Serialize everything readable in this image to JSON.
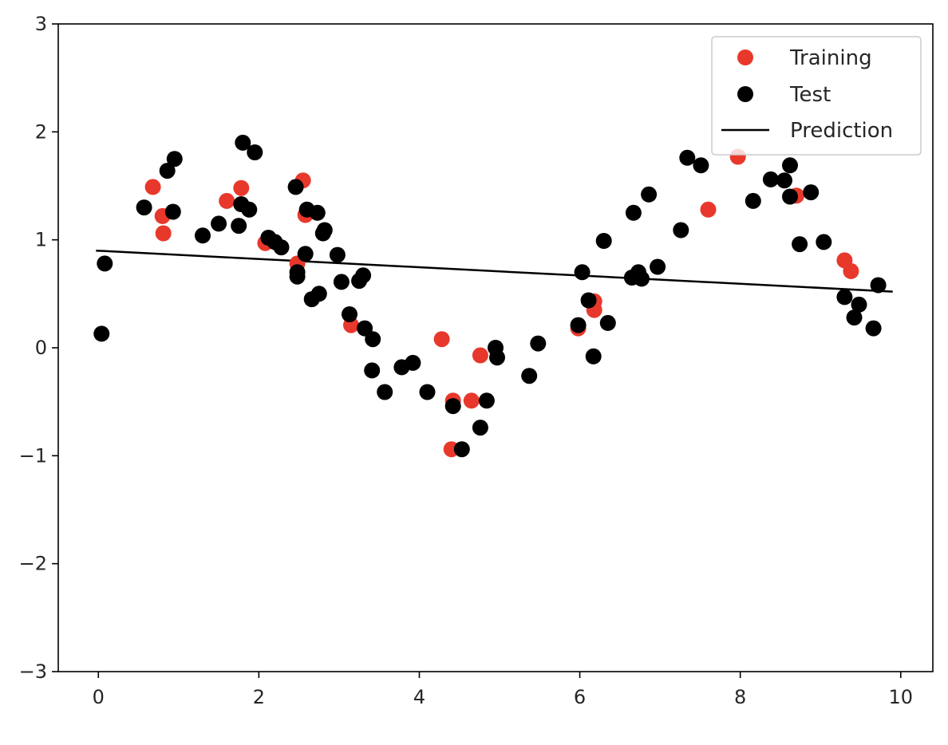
{
  "chart_data": {
    "type": "scatter",
    "xlim": [
      -0.5,
      10.4
    ],
    "ylim": [
      -3,
      3
    ],
    "x_ticks": [
      0,
      2,
      4,
      6,
      8,
      10
    ],
    "y_ticks": [
      -3,
      -2,
      -1,
      0,
      1,
      2,
      3
    ],
    "x_tick_labels": [
      "0",
      "2",
      "4",
      "6",
      "8",
      "10"
    ],
    "y_tick_labels": [
      "−3",
      "−2",
      "−1",
      "0",
      "1",
      "2",
      "3"
    ],
    "grid": false,
    "legend": {
      "position": "top-right",
      "entries": [
        {
          "label": "Training",
          "marker": "circle",
          "color": "#e8382c"
        },
        {
          "label": "Test",
          "marker": "circle",
          "color": "#000000"
        },
        {
          "label": "Prediction",
          "marker": "line",
          "color": "#000000"
        }
      ]
    },
    "series": [
      {
        "name": "Training",
        "color": "#e8382c",
        "points": [
          [
            0.68,
            1.49
          ],
          [
            0.8,
            1.22
          ],
          [
            0.81,
            1.06
          ],
          [
            1.6,
            1.36
          ],
          [
            1.78,
            1.48
          ],
          [
            2.08,
            0.97
          ],
          [
            2.48,
            0.78
          ],
          [
            2.55,
            1.55
          ],
          [
            2.58,
            1.23
          ],
          [
            3.15,
            0.21
          ],
          [
            4.28,
            0.08
          ],
          [
            4.42,
            -0.49
          ],
          [
            4.4,
            -0.94
          ],
          [
            4.65,
            -0.49
          ],
          [
            4.76,
            -0.07
          ],
          [
            5.98,
            0.18
          ],
          [
            6.18,
            0.43
          ],
          [
            6.18,
            0.35
          ],
          [
            7.6,
            1.28
          ],
          [
            7.97,
            1.77
          ],
          [
            8.7,
            1.41
          ],
          [
            9.3,
            0.81
          ],
          [
            9.38,
            0.71
          ]
        ]
      },
      {
        "name": "Test",
        "color": "#000000",
        "points": [
          [
            0.04,
            0.13
          ],
          [
            0.08,
            0.78
          ],
          [
            0.57,
            1.3
          ],
          [
            0.86,
            1.64
          ],
          [
            0.93,
            1.26
          ],
          [
            0.95,
            1.75
          ],
          [
            1.3,
            1.04
          ],
          [
            1.5,
            1.15
          ],
          [
            1.75,
            1.13
          ],
          [
            1.78,
            1.33
          ],
          [
            1.8,
            1.9
          ],
          [
            1.88,
            1.28
          ],
          [
            1.95,
            1.81
          ],
          [
            2.12,
            1.02
          ],
          [
            2.2,
            0.98
          ],
          [
            2.28,
            0.93
          ],
          [
            2.46,
            1.49
          ],
          [
            2.48,
            0.66
          ],
          [
            2.48,
            0.7
          ],
          [
            2.58,
            0.87
          ],
          [
            2.6,
            1.28
          ],
          [
            2.66,
            0.45
          ],
          [
            2.73,
            1.25
          ],
          [
            2.75,
            0.5
          ],
          [
            2.8,
            1.06
          ],
          [
            2.82,
            1.09
          ],
          [
            2.98,
            0.86
          ],
          [
            3.03,
            0.61
          ],
          [
            3.13,
            0.31
          ],
          [
            3.25,
            0.62
          ],
          [
            3.3,
            0.67
          ],
          [
            3.32,
            0.18
          ],
          [
            3.42,
            0.08
          ],
          [
            3.41,
            -0.21
          ],
          [
            3.57,
            -0.41
          ],
          [
            3.78,
            -0.18
          ],
          [
            3.92,
            -0.14
          ],
          [
            4.1,
            -0.41
          ],
          [
            4.42,
            -0.54
          ],
          [
            4.53,
            -0.94
          ],
          [
            4.76,
            -0.74
          ],
          [
            4.84,
            -0.49
          ],
          [
            4.95,
            0.0
          ],
          [
            4.97,
            -0.09
          ],
          [
            5.37,
            -0.26
          ],
          [
            5.48,
            0.04
          ],
          [
            5.98,
            0.21
          ],
          [
            6.03,
            0.7
          ],
          [
            6.11,
            0.44
          ],
          [
            6.17,
            -0.08
          ],
          [
            6.3,
            0.99
          ],
          [
            6.35,
            0.23
          ],
          [
            6.67,
            1.25
          ],
          [
            6.65,
            0.65
          ],
          [
            6.73,
            0.7
          ],
          [
            6.77,
            0.64
          ],
          [
            6.86,
            1.42
          ],
          [
            6.97,
            0.75
          ],
          [
            7.26,
            1.09
          ],
          [
            7.34,
            1.76
          ],
          [
            7.51,
            1.69
          ],
          [
            8.16,
            1.36
          ],
          [
            8.38,
            1.56
          ],
          [
            8.55,
            1.55
          ],
          [
            8.62,
            1.69
          ],
          [
            8.62,
            1.4
          ],
          [
            8.74,
            0.96
          ],
          [
            8.88,
            1.44
          ],
          [
            9.04,
            0.98
          ],
          [
            9.3,
            0.47
          ],
          [
            9.42,
            0.28
          ],
          [
            9.48,
            0.4
          ],
          [
            9.66,
            0.18
          ],
          [
            9.72,
            0.58
          ]
        ]
      },
      {
        "name": "Prediction",
        "color": "#000000",
        "line": [
          [
            -0.03,
            0.9
          ],
          [
            9.9,
            0.52
          ]
        ]
      }
    ]
  }
}
